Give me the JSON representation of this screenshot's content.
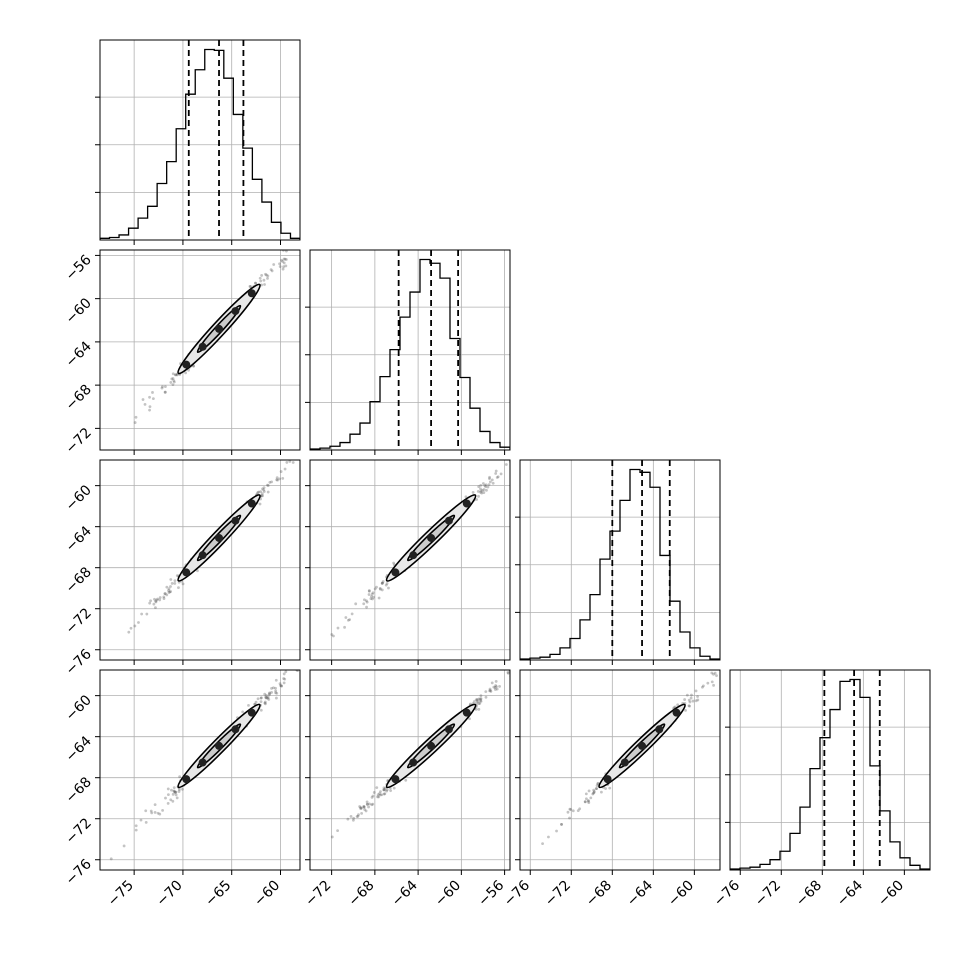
{
  "chart_data": {
    "type": "corner",
    "grid": true,
    "n_params": 4,
    "colors": {
      "line": "#000000",
      "grid": "#b0b0b0",
      "scatter": "#555555",
      "contour_fill": "#e8e8e8"
    },
    "params": [
      {
        "range": [
          -78.5,
          -58.0
        ],
        "ticks": [
          -75,
          -70,
          -65,
          -60
        ],
        "tick_labels": [
          "−75",
          "−70",
          "−65",
          "−60"
        ]
      },
      {
        "range": [
          -74.0,
          -55.5
        ],
        "ticks": [
          -72,
          -68,
          -64,
          -60,
          -56
        ],
        "tick_labels": [
          "−72",
          "−68",
          "−64",
          "−60",
          "−56"
        ]
      },
      {
        "range": [
          -77.0,
          -57.5
        ],
        "ticks": [
          -76,
          -72,
          -68,
          -64,
          -60
        ],
        "tick_labels": [
          "−76",
          "−72",
          "−68",
          "−64",
          "−60"
        ]
      },
      {
        "range": [
          -77.0,
          -57.5
        ],
        "ticks": [
          -76,
          -72,
          -68,
          -64,
          -60
        ],
        "tick_labels": [
          "−76",
          "−72",
          "−68",
          "−64",
          "−60"
        ]
      }
    ],
    "histograms": [
      {
        "quantiles": [
          -69.4,
          -66.3,
          -63.8
        ],
        "counts": [
          2,
          3,
          6,
          14,
          26,
          40,
          67,
          93,
          132,
          173,
          202,
          226,
          225,
          192,
          149,
          109,
          72,
          45,
          21,
          8,
          2
        ]
      },
      {
        "quantiles": [
          -65.8,
          -62.8,
          -60.3
        ],
        "counts": [
          1,
          2,
          4,
          8,
          17,
          29,
          52,
          79,
          108,
          143,
          170,
          205,
          201,
          185,
          120,
          78,
          45,
          20,
          8,
          3
        ]
      },
      {
        "quantiles": [
          -68.0,
          -65.1,
          -62.4
        ],
        "counts": [
          1,
          2,
          3,
          6,
          13,
          23,
          43,
          70,
          108,
          138,
          171,
          204,
          201,
          185,
          112,
          63,
          30,
          13,
          4,
          1
        ]
      },
      {
        "quantiles": [
          -67.8,
          -64.9,
          -62.4
        ],
        "counts": [
          1,
          2,
          3,
          6,
          11,
          20,
          39,
          67,
          108,
          141,
          171,
          201,
          203,
          184,
          111,
          63,
          30,
          13,
          5,
          1
        ]
      }
    ],
    "correlation": 0.995
  }
}
